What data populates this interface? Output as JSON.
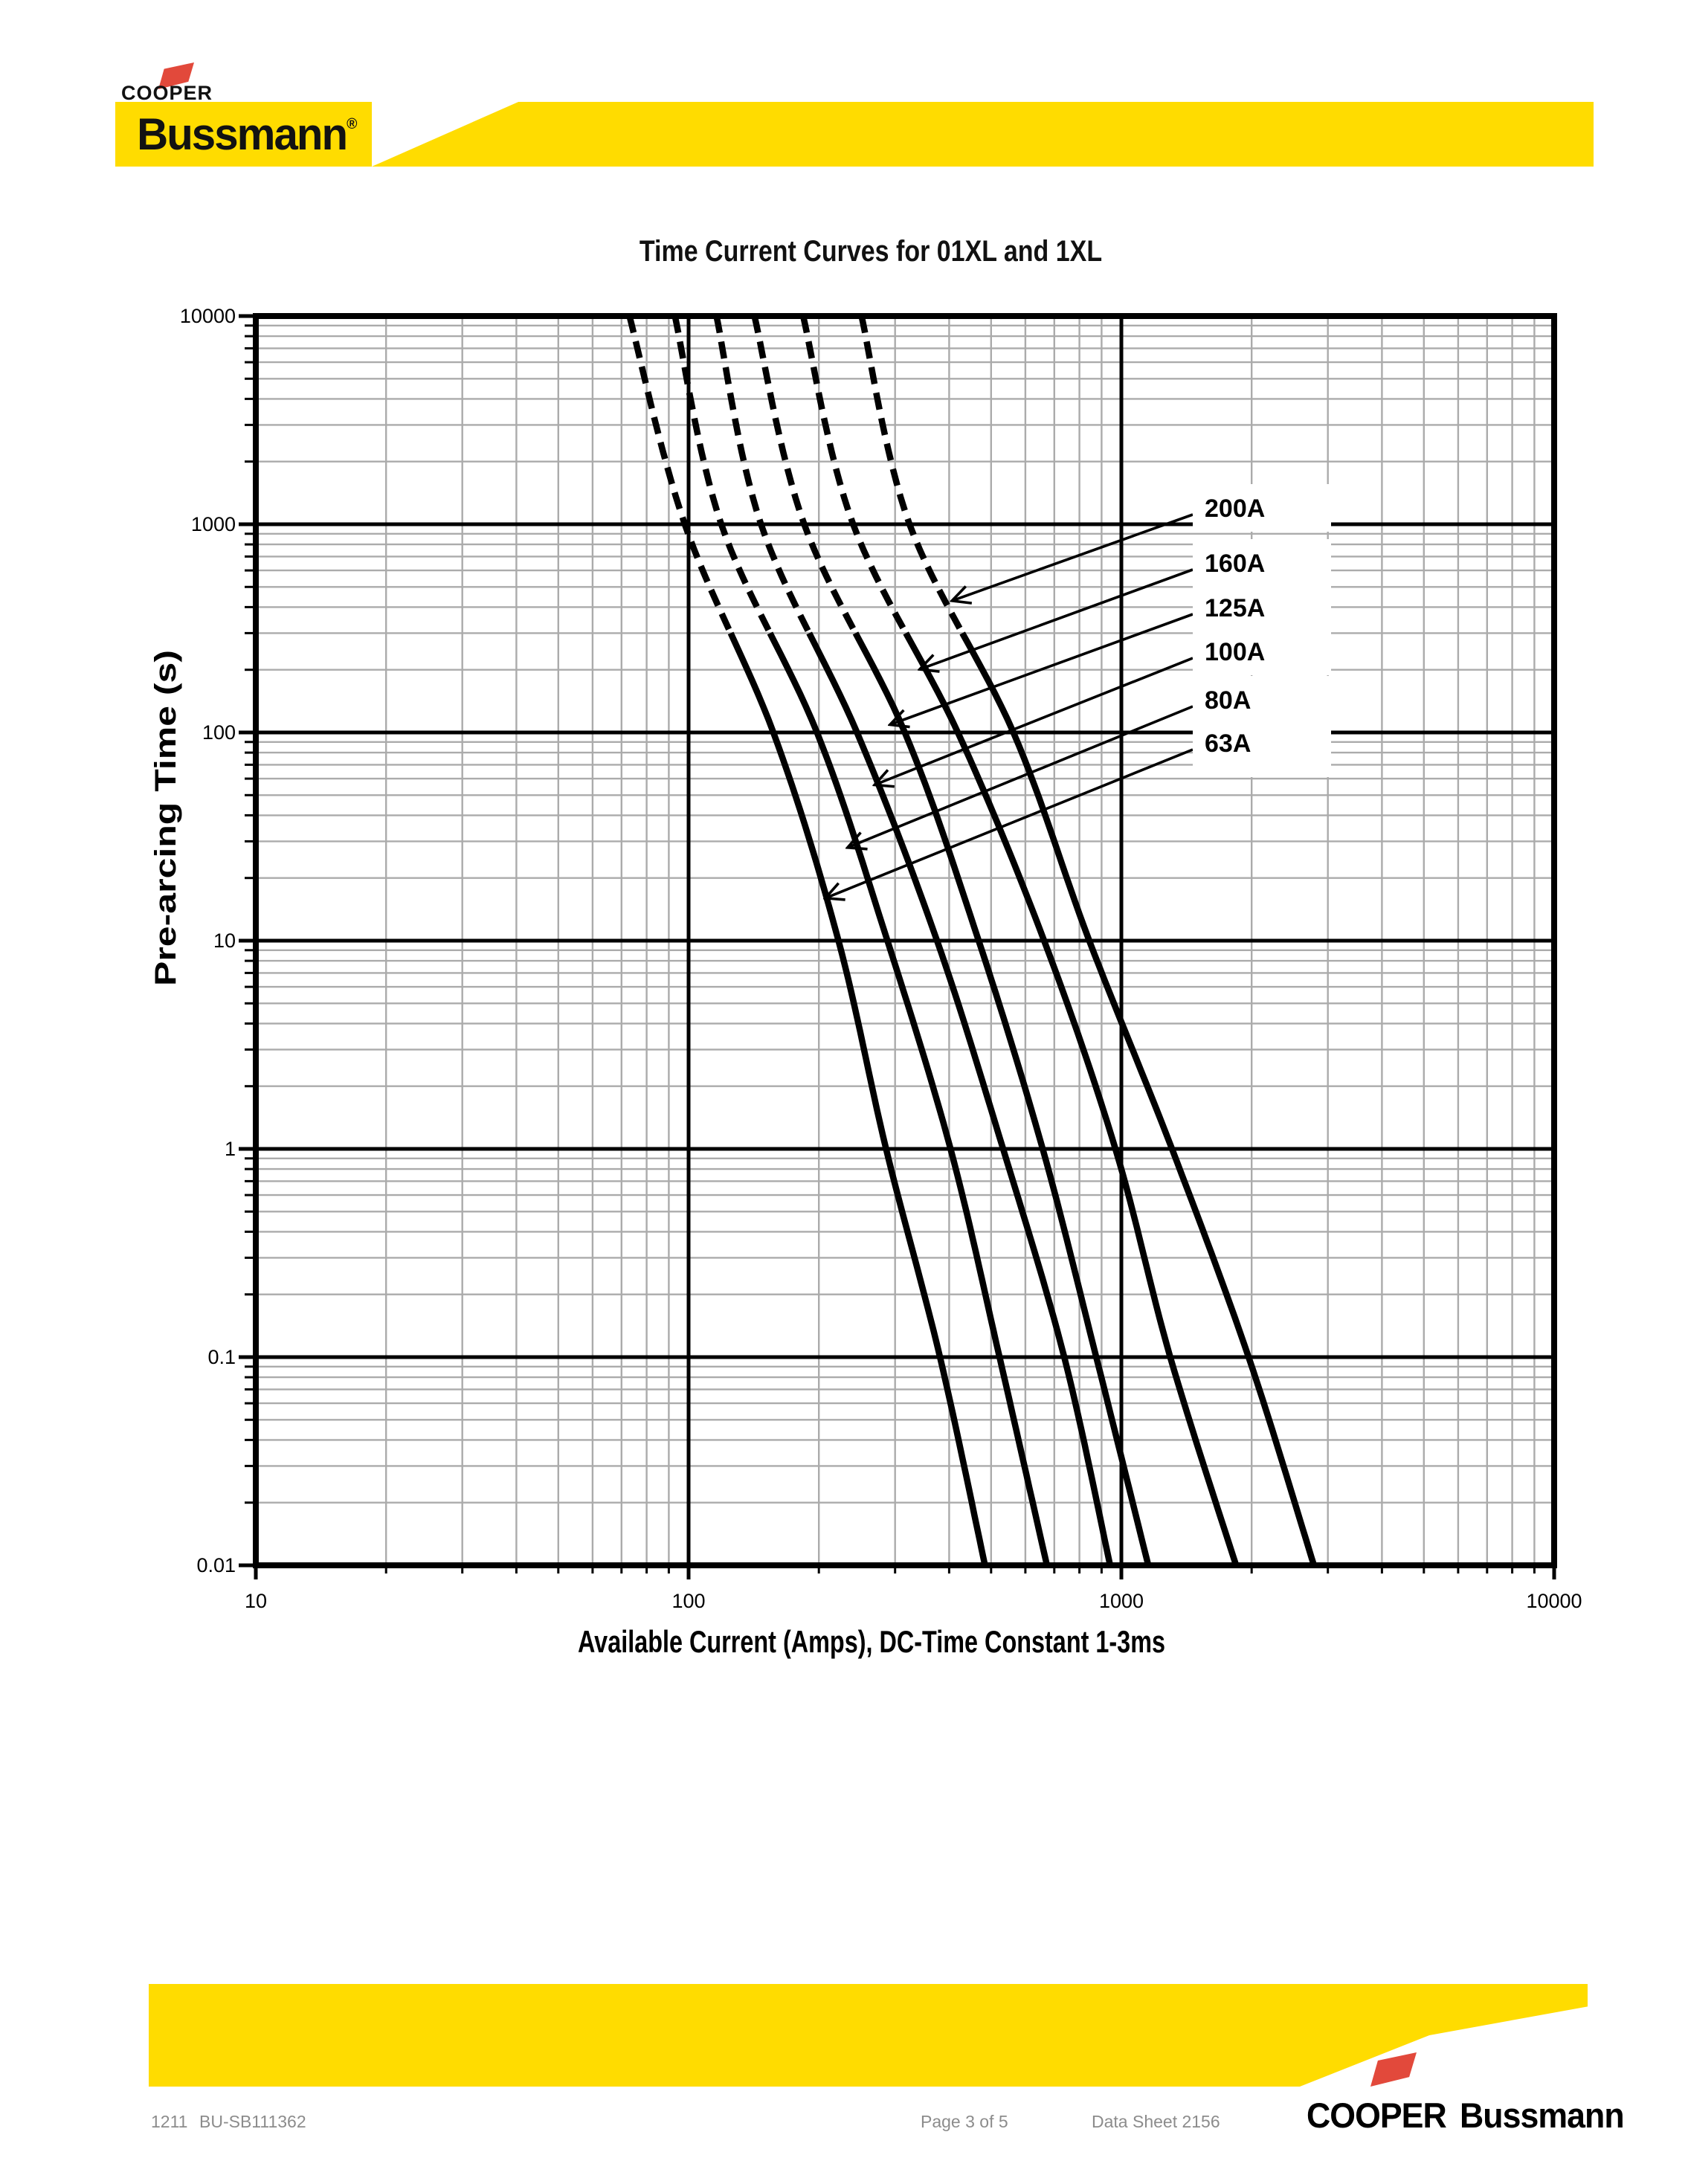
{
  "header": {
    "cooper": "COOPER",
    "bussmann": "Bussmann",
    "reg": "®"
  },
  "title": "Time Current Curves for 01XL and 1XL",
  "chart_data": {
    "type": "line",
    "title": "Time Current Curves for 01XL and 1XL",
    "xlabel": "Available Current (Amps), DC-Time Constant 1-3ms",
    "ylabel": "Pre-arcing Time (s)",
    "x_scale": "log",
    "y_scale": "log",
    "xlim": [
      10,
      10000
    ],
    "ylim": [
      0.01,
      10000
    ],
    "x_tick_labels": [
      "10",
      "100",
      "1000",
      "10000"
    ],
    "y_tick_labels": [
      "10000",
      "1000",
      "100",
      "10",
      "1",
      "0.1",
      "0.01"
    ],
    "grid": {
      "minor": true,
      "minor_color": "#ABABAB",
      "major_color": "#000000"
    },
    "dashed_above_seconds": 300,
    "times_s": [
      10000,
      1000,
      100,
      10,
      1,
      0.1,
      0.01
    ],
    "series": [
      {
        "name": "63A",
        "amps": [
          73,
          98,
          157,
          222,
          286,
          381,
          484
        ]
      },
      {
        "name": "80A",
        "amps": [
          93,
          119,
          198,
          288,
          403,
          523,
          673
        ]
      },
      {
        "name": "100A",
        "amps": [
          116,
          147,
          245,
          375,
          533,
          738,
          942
        ]
      },
      {
        "name": "125A",
        "amps": [
          142,
          185,
          316,
          468,
          658,
          875,
          1154
        ]
      },
      {
        "name": "160A",
        "amps": [
          184,
          240,
          419,
          663,
          969,
          1297,
          1841
        ]
      },
      {
        "name": "200A",
        "amps": [
          251,
          324,
          563,
          843,
          1309,
          1968,
          2786
        ]
      }
    ],
    "annotations": [
      {
        "text": "200A",
        "points_to_amps": 406,
        "points_to_seconds": 429
      },
      {
        "text": "160A",
        "points_to_amps": 342,
        "points_to_seconds": 201
      },
      {
        "text": "125A",
        "points_to_amps": 292,
        "points_to_seconds": 109
      },
      {
        "text": "100A",
        "points_to_amps": 269,
        "points_to_seconds": 56
      },
      {
        "text": "80A",
        "points_to_amps": 233,
        "points_to_seconds": 28
      },
      {
        "text": "63A",
        "points_to_amps": 207,
        "points_to_seconds": 16
      }
    ]
  },
  "footer": {
    "code": "1211",
    "doc": "BU-SB111362",
    "page": "Page 3 of 5",
    "sheet": "Data Sheet 2156",
    "cooper": "COOPER",
    "bussmann": "Bussmann"
  },
  "colors": {
    "brand_yellow": "#FFDC00",
    "brand_red": "#E2493B",
    "grid_minor": "#ABABAB",
    "ink": "#000000",
    "footer_text": "#8C8C8C"
  }
}
